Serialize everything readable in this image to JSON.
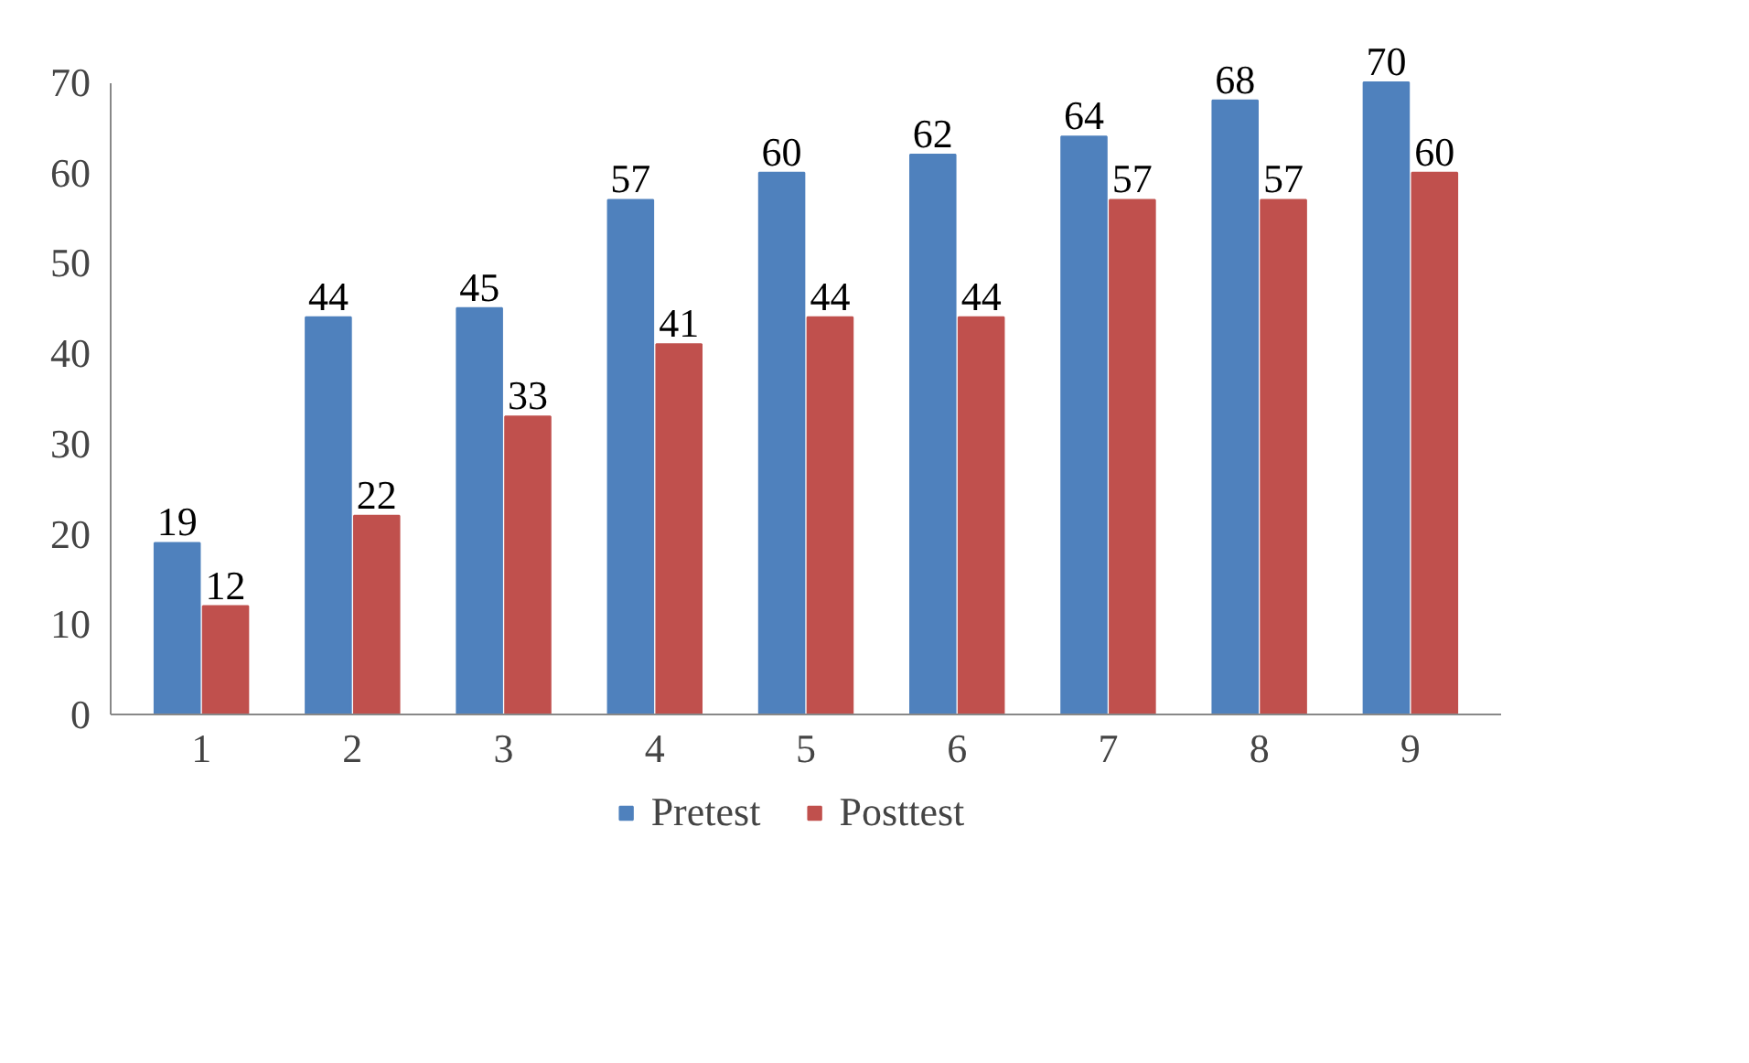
{
  "chart_data": {
    "type": "bar",
    "categories": [
      "1",
      "2",
      "3",
      "4",
      "5",
      "6",
      "7",
      "8",
      "9"
    ],
    "series": [
      {
        "name": "Pretest",
        "color": "#4f81bd",
        "values": [
          19,
          44,
          45,
          57,
          60,
          62,
          64,
          68,
          70
        ]
      },
      {
        "name": "Posttest",
        "color": "#c0504d",
        "values": [
          12,
          22,
          33,
          41,
          44,
          44,
          57,
          57,
          60
        ]
      }
    ],
    "ylim": [
      0,
      70
    ],
    "yticks": [
      0,
      10,
      20,
      30,
      40,
      50,
      60,
      70
    ],
    "grid": false,
    "legend": "bottom",
    "data_labels": true
  }
}
